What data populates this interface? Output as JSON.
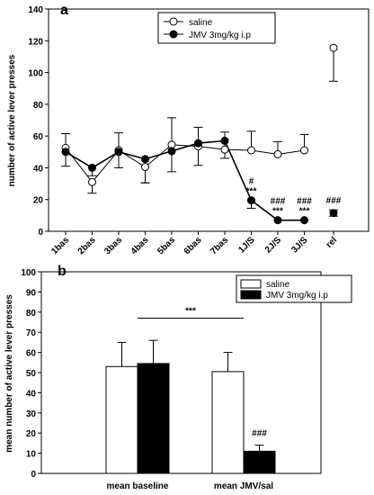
{
  "chart_data": [
    {
      "type": "line",
      "panel_label": "a",
      "ylabel": "number of active lever presses",
      "ylim": [
        0,
        140
      ],
      "yticks": [
        0,
        20,
        40,
        60,
        80,
        100,
        120,
        140
      ],
      "categories": [
        "1bas",
        "2bas",
        "3bas",
        "4bas",
        "5bas",
        "6bas",
        "7bas",
        "1J/S",
        "2J/S",
        "3J/S",
        "rel"
      ],
      "legend_position": "top-right",
      "series": [
        {
          "name": "saline",
          "marker": "open-circle",
          "color": "#000000",
          "values": [
            52.5,
            31,
            51,
            40.5,
            54.5,
            53.5,
            51.5,
            51,
            48.5,
            51,
            115.5
          ],
          "error": [
            9,
            7,
            11,
            10,
            17,
            12,
            11,
            12,
            8,
            10,
            21
          ],
          "error_dir": [
            "up",
            "down",
            "up",
            "down",
            "up",
            "up",
            "up",
            "up",
            "up",
            "up",
            "down"
          ]
        },
        {
          "name": "JMV 3mg/kg i.p",
          "marker": "filled-circle",
          "color": "#000000",
          "values": [
            50,
            40,
            50,
            45.5,
            50.5,
            55.5,
            57,
            19.5,
            7,
            7,
            11.5
          ],
          "error": [
            9,
            5,
            10,
            15,
            13,
            14,
            11,
            5,
            0,
            0,
            2
          ],
          "error_dir": [
            "down",
            "down",
            "down",
            "down",
            "down",
            "down",
            "down",
            "down",
            "down",
            "down",
            "both"
          ]
        }
      ],
      "annotations": [
        {
          "index": 7,
          "lines": [
            "#",
            "***"
          ]
        },
        {
          "index": 8,
          "lines": [
            "###",
            "***"
          ]
        },
        {
          "index": 9,
          "lines": [
            "###",
            "***"
          ]
        },
        {
          "index": 10,
          "lines": [
            "###"
          ]
        }
      ]
    },
    {
      "type": "bar",
      "panel_label": "b",
      "ylabel": "mean number of active lever presses",
      "ylim": [
        0,
        100
      ],
      "yticks": [
        0,
        10,
        20,
        30,
        40,
        50,
        60,
        70,
        80,
        90,
        100
      ],
      "categories": [
        "mean baseline",
        "mean JMV/sal"
      ],
      "legend_position": "top-right",
      "series": [
        {
          "name": "saline",
          "fill": "#ffffff",
          "values": [
            53,
            50.5
          ],
          "error": [
            12,
            9.5
          ]
        },
        {
          "name": "JMV 3mg/kg i.p",
          "fill": "#000000",
          "values": [
            54.5,
            11
          ],
          "error": [
            11.5,
            3
          ]
        }
      ],
      "annotations": [
        {
          "text": "***",
          "bracket_from": 0,
          "bracket_to": 1,
          "y": 77
        },
        {
          "text": "###",
          "category": 1,
          "series": 1,
          "y": 18
        }
      ]
    }
  ]
}
